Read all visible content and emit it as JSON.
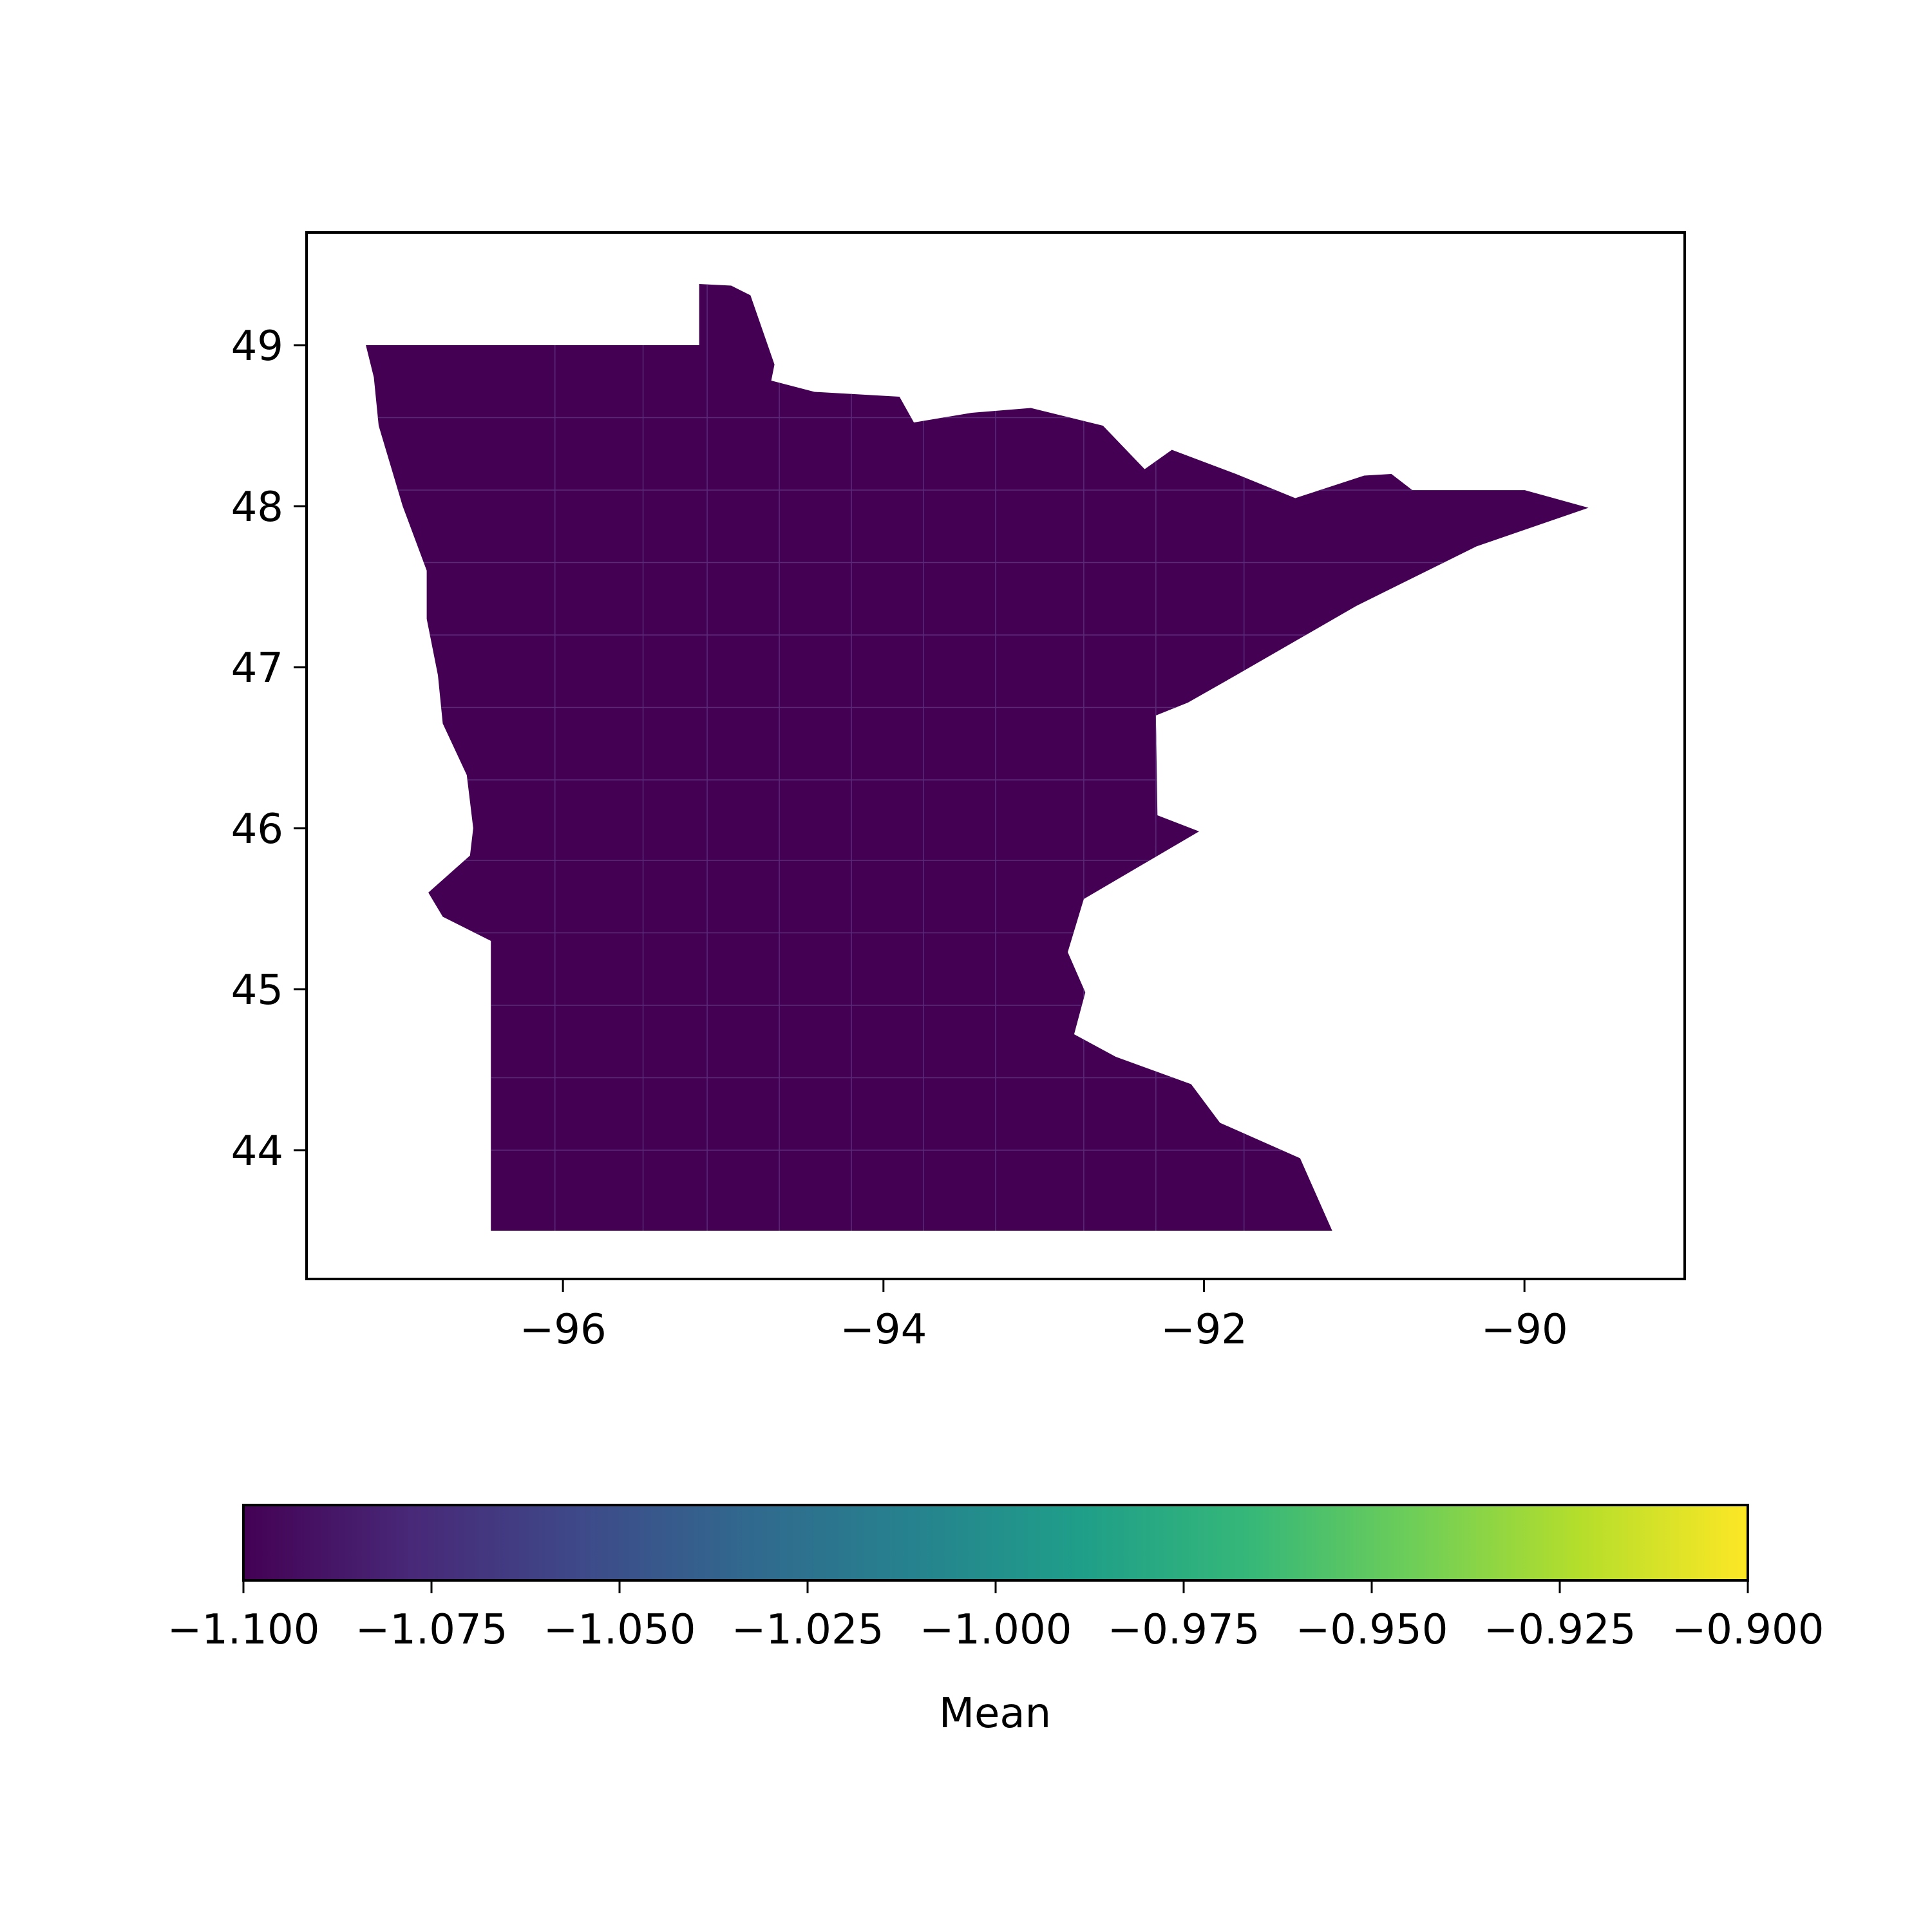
{
  "chart_data": {
    "type": "choropleth",
    "region": "Minnesota counties",
    "fill_value": -1.1,
    "fill_color": "#440154",
    "x_axis": {
      "lim": [
        -97.6,
        -89.0
      ],
      "ticks": [
        -96,
        -94,
        -92,
        -90
      ],
      "tick_labels": [
        "−96",
        "−94",
        "−92",
        "−90"
      ]
    },
    "y_axis": {
      "lim": [
        43.2,
        49.7
      ],
      "ticks": [
        44,
        45,
        46,
        47,
        48,
        49
      ],
      "tick_labels": [
        "44",
        "45",
        "46",
        "47",
        "48",
        "49"
      ]
    },
    "colorbar": {
      "label": "Mean",
      "colormap": "viridis",
      "range": [
        -1.1,
        -0.9
      ],
      "ticks": [
        -1.1,
        -1.075,
        -1.05,
        -1.025,
        -1.0,
        -0.975,
        -0.95,
        -0.925,
        -0.9
      ],
      "tick_labels": [
        "−1.100",
        "−1.075",
        "−1.050",
        "−1.025",
        "−1.000",
        "−0.975",
        "−0.950",
        "−0.925",
        "−0.900"
      ],
      "colors": [
        "#440154",
        "#482878",
        "#3e4989",
        "#31688e",
        "#26828e",
        "#1f9e89",
        "#35b779",
        "#6ece58",
        "#b5de2b",
        "#fde725"
      ]
    },
    "grid": false
  }
}
